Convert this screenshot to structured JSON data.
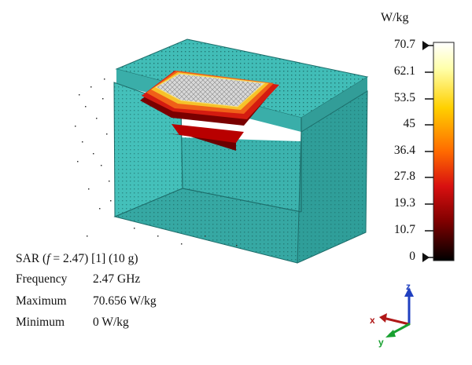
{
  "colorbar": {
    "unit": "W/kg",
    "ticks": [
      "70.7",
      "62.1",
      "53.5",
      "45",
      "36.4",
      "27.8",
      "19.3",
      "10.7",
      "0"
    ],
    "colors": [
      "#ffffff",
      "#ffff99",
      "#ffd000",
      "#ff7a00",
      "#e01010",
      "#a00000",
      "#400000",
      "#000000"
    ]
  },
  "result": {
    "title_prefix": "SAR (",
    "title_var": "f",
    "title_suffix": " = 2.47) [1] (10 g)",
    "frequency_label": "Frequency",
    "frequency_value": "2.47 GHz",
    "maximum_label": "Maximum",
    "maximum_value": "70.656 W/kg",
    "minimum_label": "Minimum",
    "minimum_value": "0 W/kg"
  },
  "axes": {
    "x": "x",
    "y": "y",
    "z": "z"
  },
  "colors": {
    "phantom": "#3fb8b3",
    "phantom_dark": "#2a8f8b",
    "x_axis": "#b01818",
    "y_axis": "#18a030",
    "z_axis": "#2040c0"
  }
}
